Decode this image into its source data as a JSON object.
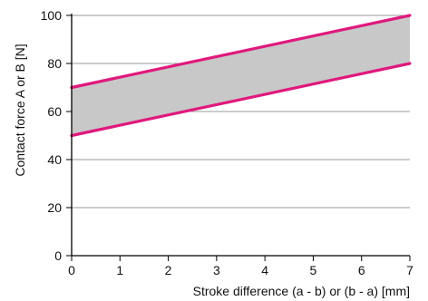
{
  "chart_data": {
    "type": "area",
    "title": "",
    "xlabel": "Stroke difference (a - b) or (b - a) [mm]",
    "ylabel": "Contact force A or B [N]",
    "xlim": [
      0,
      7
    ],
    "ylim": [
      0,
      100
    ],
    "x_ticks": [
      0,
      1,
      2,
      3,
      4,
      5,
      6,
      7
    ],
    "y_ticks": [
      0,
      20,
      40,
      60,
      80,
      100
    ],
    "grid": "horizontal",
    "series": [
      {
        "x": [
          0,
          7
        ],
        "values": [
          70,
          100
        ]
      },
      {
        "x": [
          0,
          7
        ],
        "values": [
          50,
          80
        ]
      }
    ],
    "band": {
      "between": [
        0,
        1
      ]
    },
    "colors": {
      "line": "#e0197d",
      "band": "#c8c8c8",
      "grid": "#9a9a9a",
      "axis": "#000000"
    }
  }
}
